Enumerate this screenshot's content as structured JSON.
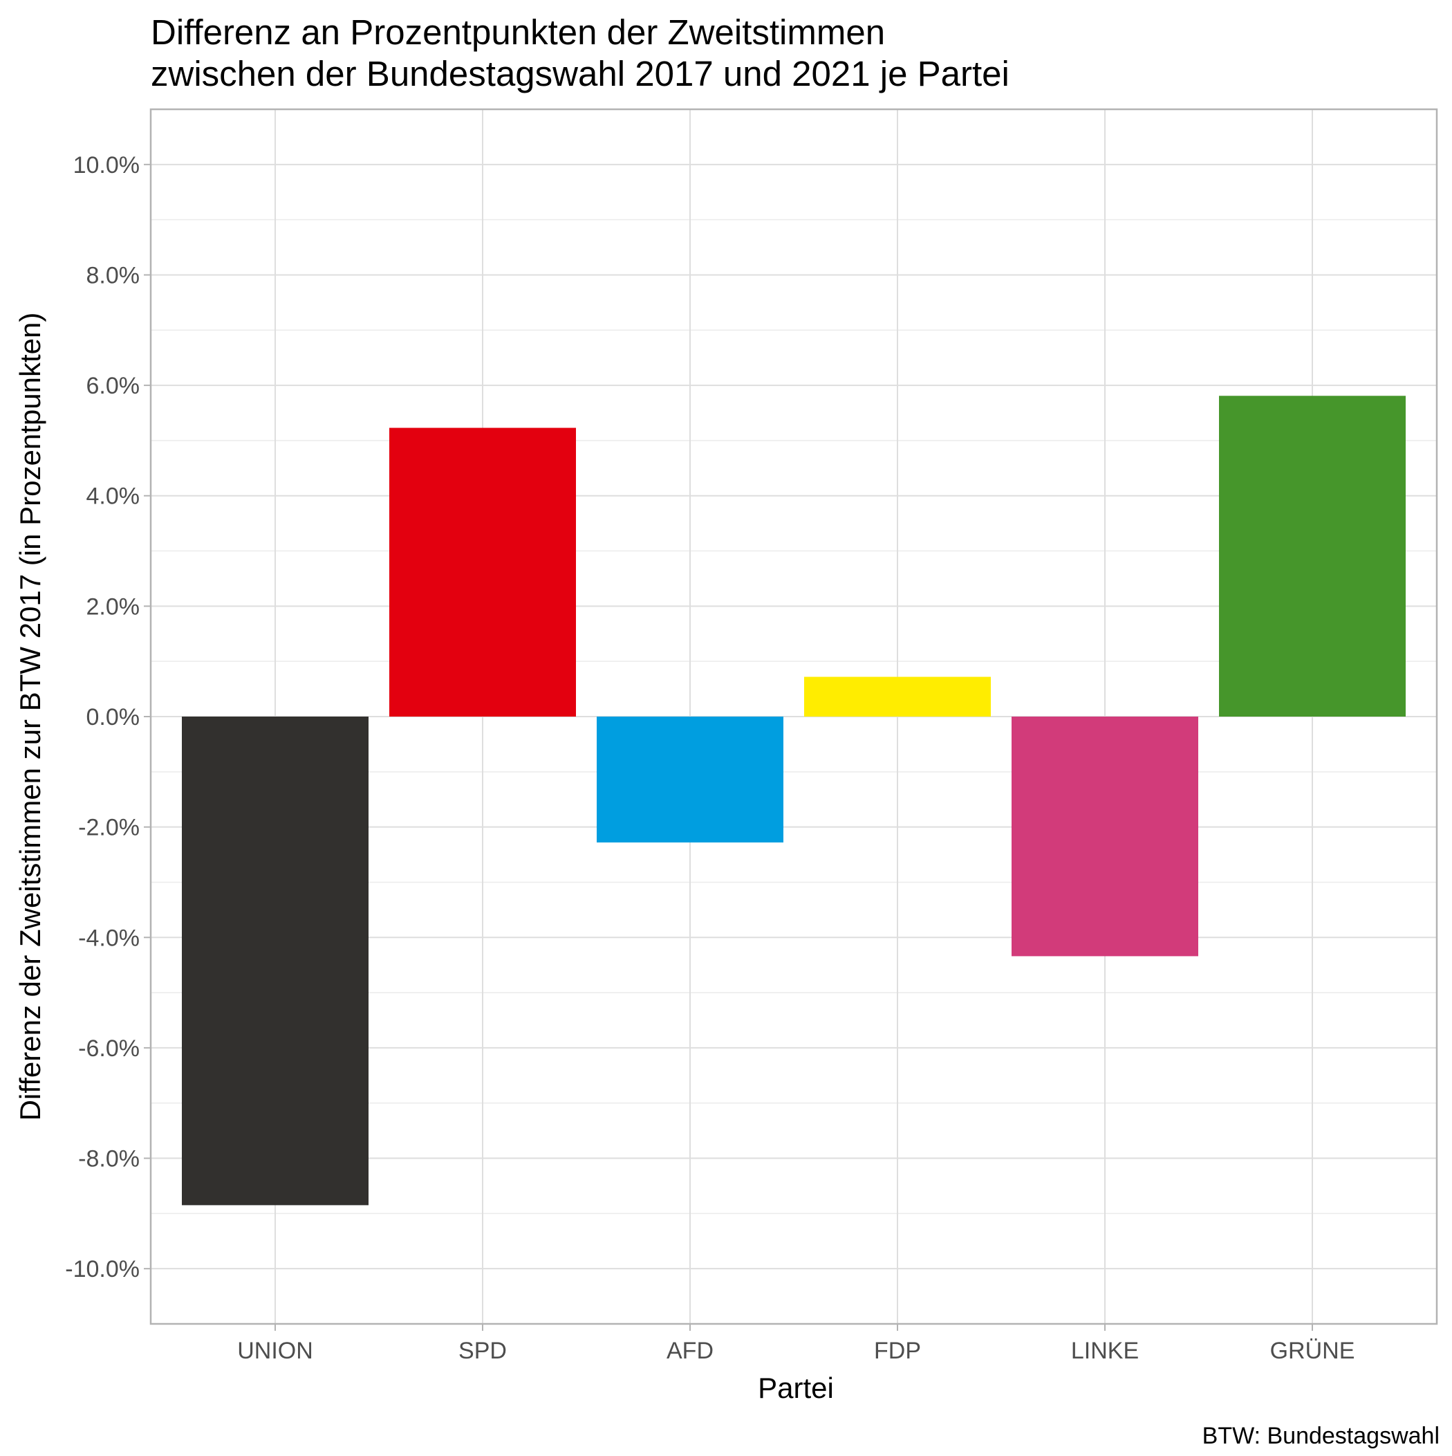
{
  "chart_data": {
    "type": "bar",
    "title": [
      "Differenz an Prozentpunkten der Zweitstimmen",
      "zwischen der Bundestagswahl 2017 und 2021 je Partei"
    ],
    "xlabel": "Partei",
    "ylabel": "Differenz der Zweitstimmen zur BTW 2017 (in Prozentpunkten)",
    "caption": "BTW: Bundestagswahl",
    "categories": [
      "UNION",
      "SPD",
      "AFD",
      "FDP",
      "LINKE",
      "GRÜNE"
    ],
    "values": [
      -8.85,
      5.23,
      -2.28,
      0.72,
      -4.34,
      5.81
    ],
    "colors": [
      "#32302e",
      "#e3000f",
      "#009ee0",
      "#ffed00",
      "#d23b7a",
      "#46962b"
    ],
    "y_ticks": [
      -10,
      -8,
      -6,
      -4,
      -2,
      0,
      2,
      4,
      6,
      8,
      10
    ],
    "y_tick_labels": [
      "-10.0%",
      "-8.0%",
      "-6.0%",
      "-4.0%",
      "-2.0%",
      "0.0%",
      "2.0%",
      "4.0%",
      "6.0%",
      "8.0%",
      "10.0%"
    ],
    "ylim": [
      -11,
      11
    ],
    "grid": true,
    "legend": "none"
  }
}
